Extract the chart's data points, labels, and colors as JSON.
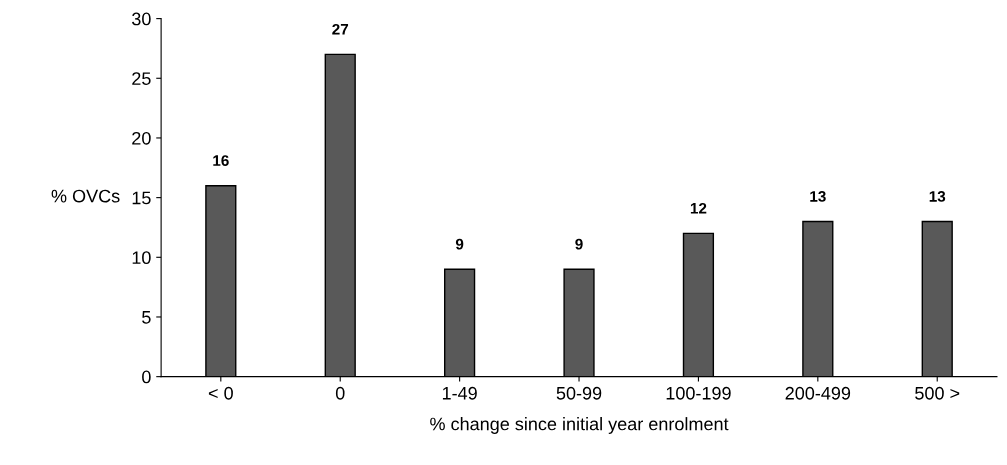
{
  "chart_data": {
    "type": "bar",
    "xlabel": "% change since initial year enrolment",
    "ylabel": "% OVCs",
    "categories": [
      "< 0",
      "0",
      "1-49",
      "50-99",
      "100-199",
      "200-499",
      "500 >"
    ],
    "values": [
      16,
      27,
      9,
      9,
      12,
      13,
      13
    ],
    "color": "#595959",
    "ylim": [
      0,
      30
    ],
    "yticks": [
      0,
      5,
      10,
      15,
      20,
      25,
      30
    ],
    "grid": false,
    "data_labels": true
  }
}
